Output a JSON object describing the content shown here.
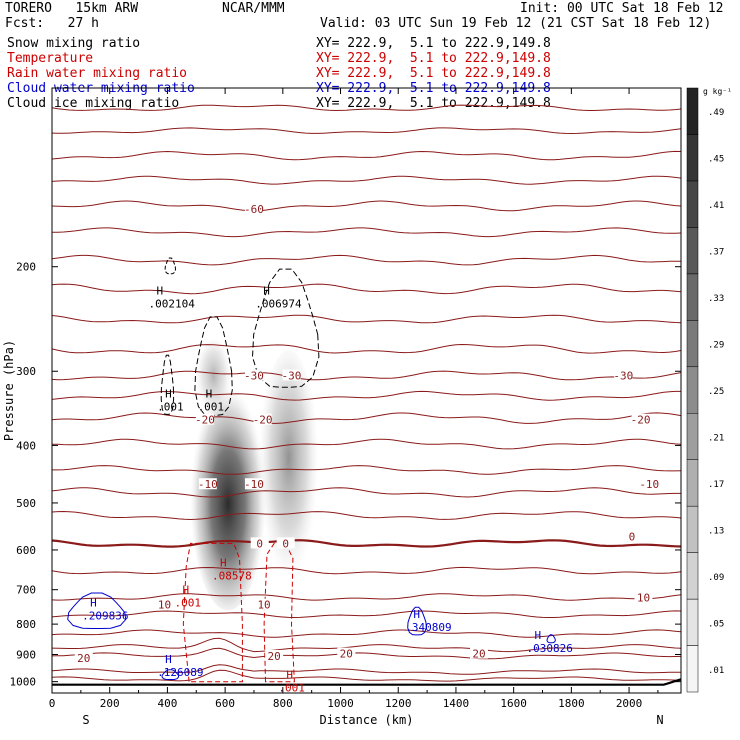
{
  "header": {
    "model": "TORERO   15km ARW",
    "center": "NCAR/MMM",
    "init": "Init: 00 UTC Sat 18 Feb 12",
    "fcst": "Fcst:   27 h",
    "valid": "Valid: 03 UTC Sun 19 Feb 12 (21 CST Sat 18 Feb 12)"
  },
  "fields": [
    {
      "name": "Snow mixing ratio",
      "xy": "XY= 222.9,  5.1 to 222.9,149.8",
      "color": "#000000"
    },
    {
      "name": "Temperature",
      "xy": "XY= 222.9,  5.1 to 222.9,149.8",
      "color": "#cc0000"
    },
    {
      "name": "Rain water mixing ratio",
      "xy": "XY= 222.9,  5.1 to 222.9,149.8",
      "color": "#cc0000"
    },
    {
      "name": "Cloud water mixing ratio",
      "xy": "XY= 222.9,  5.1 to 222.9,149.8",
      "color": "#0000cc"
    },
    {
      "name": "Cloud ice mixing ratio",
      "xy": "XY= 222.9,  5.1 to 222.9,149.8",
      "color": "#000000"
    }
  ],
  "colors": {
    "temperature": "#8b1a1a",
    "rain": "#cc0000",
    "cloud_water": "#0000cc",
    "snow": "#000000",
    "terrain": "#000000"
  },
  "chart_data": {
    "type": "cross-section",
    "xlabel": "Distance (km)",
    "ylabel": "Pressure (hPa)",
    "x_ticks": [
      0,
      200,
      400,
      600,
      800,
      1000,
      1200,
      1400,
      1600,
      1800,
      2000
    ],
    "y_ticks": [
      200,
      300,
      400,
      500,
      600,
      700,
      800,
      900,
      1000
    ],
    "xlim": [
      0,
      2180
    ],
    "ylim": [
      1045,
      100
    ],
    "y_scale": "log",
    "left_end_label": "S",
    "right_end_label": "N",
    "colorbar": {
      "unit": "g kg⁻¹",
      "levels": [
        ".01",
        ".05",
        ".09",
        ".13",
        ".17",
        ".21",
        ".25",
        ".29",
        ".33",
        ".37",
        ".41",
        ".45",
        ".49"
      ]
    },
    "temperature_labels": [
      {
        "x": 700,
        "p": 160,
        "text": "-60"
      },
      {
        "x": 700,
        "p": 305,
        "text": "-30"
      },
      {
        "x": 830,
        "p": 305,
        "text": "-30"
      },
      {
        "x": 1980,
        "p": 305,
        "text": "-30"
      },
      {
        "x": 530,
        "p": 362,
        "text": "-20"
      },
      {
        "x": 730,
        "p": 362,
        "text": "-20"
      },
      {
        "x": 2040,
        "p": 362,
        "text": "-20"
      },
      {
        "x": 540,
        "p": 465,
        "text": "-10"
      },
      {
        "x": 700,
        "p": 465,
        "text": "-10"
      },
      {
        "x": 2070,
        "p": 465,
        "text": "-10"
      },
      {
        "x": 720,
        "p": 585,
        "text": "0"
      },
      {
        "x": 810,
        "p": 585,
        "text": "0"
      },
      {
        "x": 2010,
        "p": 570,
        "text": "0"
      },
      {
        "x": 390,
        "p": 742,
        "text": "10"
      },
      {
        "x": 735,
        "p": 742,
        "text": "10"
      },
      {
        "x": 2050,
        "p": 722,
        "text": "10"
      },
      {
        "x": 110,
        "p": 913,
        "text": "20"
      },
      {
        "x": 770,
        "p": 905,
        "text": "20"
      },
      {
        "x": 1020,
        "p": 897,
        "text": "20"
      },
      {
        "x": 1480,
        "p": 897,
        "text": "20"
      }
    ],
    "maxima": [
      {
        "x": 390,
        "p": 228,
        "value": ".002104",
        "color": "#000000"
      },
      {
        "x": 760,
        "p": 228,
        "value": ".006974",
        "color": "#000000"
      },
      {
        "x": 420,
        "p": 340,
        "value": ".001",
        "color": "#000000"
      },
      {
        "x": 560,
        "p": 340,
        "value": ".001",
        "color": "#000000"
      },
      {
        "x": 610,
        "p": 655,
        "value": ".08578",
        "color": "#cc0000"
      },
      {
        "x": 480,
        "p": 727,
        "value": ".001",
        "color": "#cc0000"
      },
      {
        "x": 840,
        "p": 1012,
        "value": ".001",
        "color": "#cc0000"
      },
      {
        "x": 160,
        "p": 765,
        "value": ".209836",
        "color": "#0000cc"
      },
      {
        "x": 1280,
        "p": 800,
        "value": ".340809",
        "color": "#0000cc"
      },
      {
        "x": 1700,
        "p": 868,
        "value": ".030826",
        "color": "#0000cc"
      },
      {
        "x": 420,
        "p": 952,
        "value": ".126089",
        "color": "#0000cc"
      }
    ]
  }
}
